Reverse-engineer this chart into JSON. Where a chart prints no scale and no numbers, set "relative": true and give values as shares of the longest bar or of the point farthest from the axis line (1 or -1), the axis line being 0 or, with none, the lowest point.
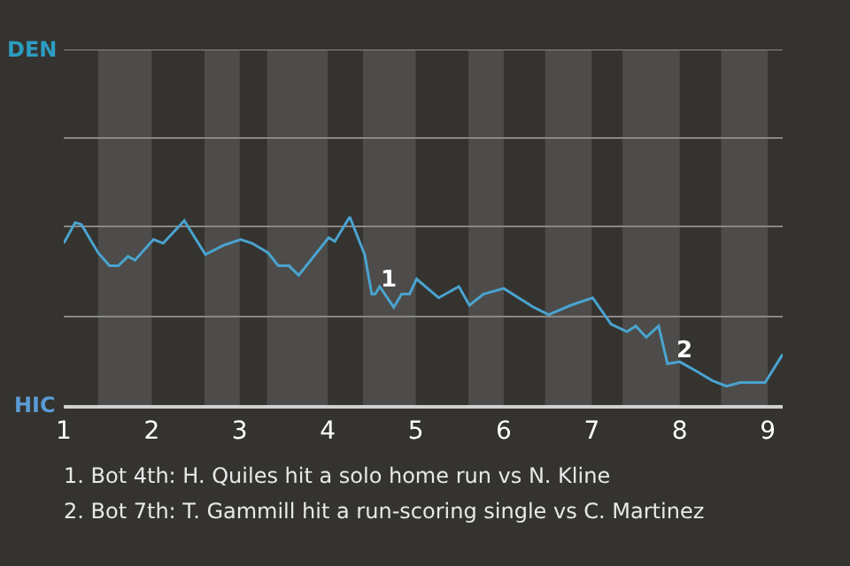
{
  "chart_data": {
    "type": "line",
    "relative": true,
    "x": [
      1.0,
      1.13,
      1.2,
      1.39,
      1.52,
      1.62,
      1.73,
      1.81,
      2.02,
      2.13,
      2.37,
      2.61,
      2.82,
      3.01,
      3.14,
      3.32,
      3.44,
      3.56,
      3.67,
      4.01,
      4.08,
      4.25,
      4.42,
      4.5,
      4.54,
      4.59,
      4.75,
      4.84,
      4.93,
      5.01,
      5.26,
      5.49,
      5.61,
      5.77,
      6.0,
      6.34,
      6.51,
      6.76,
      7.01,
      7.22,
      7.4,
      7.5,
      7.62,
      7.76,
      7.86,
      8.0,
      8.19,
      8.37,
      8.53,
      8.69,
      8.97,
      9.17
    ],
    "series": [
      {
        "color": "#4aa3cf",
        "values": [
          0.86,
          0.97,
          0.96,
          0.81,
          0.74,
          0.74,
          0.79,
          0.77,
          0.88,
          0.86,
          0.98,
          0.8,
          0.85,
          0.88,
          0.86,
          0.81,
          0.74,
          0.74,
          0.69,
          0.89,
          0.87,
          1,
          0.8,
          0.59,
          0.59,
          0.63,
          0.52,
          0.59,
          0.59,
          0.67,
          0.57,
          0.63,
          0.53,
          0.59,
          0.62,
          0.52,
          0.48,
          0.53,
          0.57,
          0.43,
          0.39,
          0.42,
          0.36,
          0.42,
          0.22,
          0.23,
          0.18,
          0.13,
          0.1,
          0.12,
          0.12,
          0.27
        ]
      }
    ],
    "xlim": [
      1,
      9.17
    ],
    "xticks": [
      1,
      2,
      3,
      4,
      5,
      6,
      7,
      8,
      9
    ],
    "tick_labels": "x",
    "ref_lines": [
      {
        "axis": "y",
        "value": 0.47,
        "color": "#8a8886"
      },
      {
        "axis": "y",
        "value": 0.95,
        "color": "#8a8886"
      },
      {
        "axis": "y",
        "value": 1.42,
        "color": "#8a8886"
      },
      {
        "axis": "y",
        "value": 1.89,
        "color": "#8a8886"
      }
    ],
    "bands": [
      {
        "axis": "x",
        "from": 1.39,
        "to": 2,
        "color": "#4d4c4a"
      },
      {
        "axis": "x",
        "from": 2.6,
        "to": 3,
        "color": "#4d4c4a"
      },
      {
        "axis": "x",
        "from": 3.31,
        "to": 4,
        "color": "#4d4c4a"
      },
      {
        "axis": "x",
        "from": 4.4,
        "to": 5,
        "color": "#4d4c4a"
      },
      {
        "axis": "x",
        "from": 5.6,
        "to": 6,
        "color": "#4d4c4a"
      },
      {
        "axis": "x",
        "from": 6.47,
        "to": 7,
        "color": "#4d4c4a"
      },
      {
        "axis": "x",
        "from": 7.35,
        "to": 8,
        "color": "#4d4c4a"
      },
      {
        "axis": "x",
        "from": 8.47,
        "to": 9,
        "color": "#4d4c4a"
      }
    ],
    "annotations": [
      {
        "text": "1",
        "x": 4.5,
        "y": 0.59
      },
      {
        "text": "2",
        "x": 7.86,
        "y": 0.22
      },
      "DEN",
      "HIC",
      "1. Bot 4th: H. Quiles hit a solo home run vs N. Kline",
      "2. Bot 7th: T. Gammill hit a run-scoring single vs C. Martinez"
    ]
  }
}
